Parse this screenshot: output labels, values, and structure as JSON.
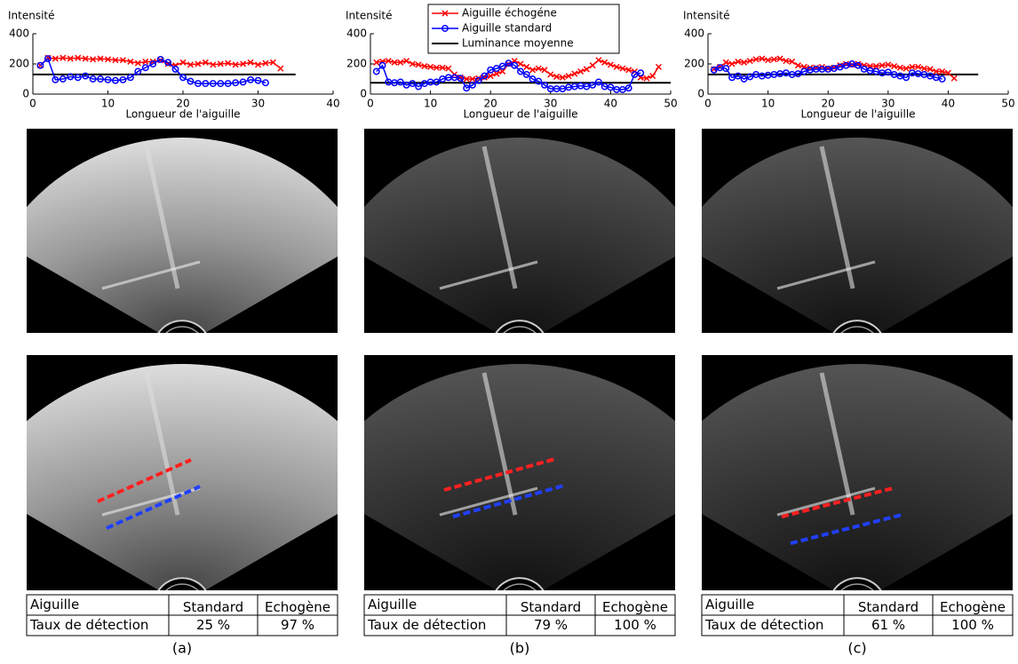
{
  "chart_data": [
    {
      "type": "line",
      "ylabel": "Intensité",
      "xlabel": "Longueur de l'aiguille",
      "xlim": [
        0,
        40
      ],
      "xticks": [
        0,
        10,
        20,
        30,
        40
      ],
      "ylim": [
        0,
        400
      ],
      "yticks": [
        0,
        200,
        400
      ],
      "series": [
        {
          "color": "#ff0000",
          "marker": "x",
          "x": [
            1,
            2,
            3,
            4,
            5,
            6,
            7,
            8,
            9,
            10,
            11,
            12,
            13,
            14,
            15,
            16,
            17,
            18,
            19,
            20,
            21,
            22,
            23,
            24,
            25,
            26,
            27,
            28,
            29,
            30,
            31,
            32,
            33
          ],
          "values": [
            190,
            240,
            235,
            240,
            235,
            240,
            235,
            230,
            235,
            230,
            225,
            225,
            215,
            205,
            215,
            215,
            225,
            200,
            190,
            210,
            195,
            200,
            210,
            195,
            200,
            205,
            195,
            200,
            210,
            195,
            205,
            210,
            170
          ]
        },
        {
          "color": "#0000ff",
          "marker": "o",
          "x": [
            1,
            2,
            3,
            4,
            5,
            6,
            7,
            8,
            9,
            10,
            11,
            12,
            13,
            14,
            15,
            16,
            17,
            18,
            19,
            20,
            21,
            22,
            23,
            24,
            25,
            26,
            27,
            28,
            29,
            30,
            31
          ],
          "values": [
            190,
            235,
            95,
            100,
            115,
            110,
            120,
            100,
            100,
            95,
            90,
            95,
            110,
            150,
            175,
            200,
            230,
            210,
            165,
            110,
            85,
            70,
            70,
            70,
            70,
            70,
            75,
            80,
            95,
            90,
            75
          ]
        }
      ],
      "reference_line": {
        "color": "#000000",
        "value": 130,
        "x": [
          0,
          35
        ]
      }
    },
    {
      "type": "line",
      "ylabel": "Intensité",
      "xlabel": "Longueur de l'aiguille",
      "xlim": [
        0,
        50
      ],
      "xticks": [
        0,
        10,
        20,
        30,
        40,
        50
      ],
      "ylim": [
        0,
        400
      ],
      "yticks": [
        0,
        200,
        400
      ],
      "series": [
        {
          "name": "Aiguille échogéne",
          "color": "#ff0000",
          "marker": "x",
          "x": [
            1,
            2,
            3,
            4,
            5,
            6,
            7,
            8,
            9,
            10,
            11,
            12,
            13,
            14,
            15,
            16,
            17,
            18,
            19,
            20,
            21,
            22,
            23,
            24,
            25,
            26,
            27,
            28,
            29,
            30,
            31,
            32,
            33,
            34,
            35,
            36,
            37,
            38,
            39,
            40,
            41,
            42,
            43,
            44,
            45,
            46,
            47,
            48
          ],
          "values": [
            210,
            215,
            220,
            210,
            210,
            220,
            200,
            195,
            185,
            180,
            175,
            175,
            170,
            130,
            110,
            100,
            100,
            105,
            110,
            120,
            135,
            150,
            200,
            220,
            200,
            180,
            160,
            170,
            160,
            130,
            115,
            110,
            120,
            135,
            150,
            165,
            190,
            225,
            210,
            195,
            180,
            170,
            160,
            150,
            110,
            105,
            120,
            180
          ]
        },
        {
          "name": "Aiguille standard",
          "color": "#0000ff",
          "marker": "o",
          "x": [
            1,
            2,
            3,
            4,
            5,
            6,
            7,
            8,
            9,
            10,
            11,
            12,
            13,
            14,
            15,
            16,
            17,
            18,
            19,
            20,
            21,
            22,
            23,
            24,
            25,
            26,
            27,
            28,
            29,
            30,
            31,
            32,
            33,
            34,
            35,
            36,
            37,
            38,
            39,
            40,
            41,
            42,
            43,
            44,
            45
          ],
          "values": [
            150,
            190,
            80,
            75,
            80,
            60,
            70,
            50,
            70,
            80,
            80,
            100,
            110,
            110,
            105,
            40,
            60,
            90,
            120,
            160,
            170,
            185,
            205,
            190,
            150,
            130,
            100,
            85,
            60,
            35,
            35,
            35,
            45,
            50,
            55,
            50,
            60,
            80,
            50,
            45,
            30,
            30,
            40,
            130,
            140
          ]
        }
      ],
      "reference_line": {
        "name": "Luminance moyenne",
        "color": "#000000",
        "value": 75,
        "x": [
          0,
          50
        ]
      }
    },
    {
      "type": "line",
      "ylabel": "Intensité",
      "xlabel": "Longueur de l'aiguille",
      "xlim": [
        0,
        50
      ],
      "xticks": [
        0,
        10,
        20,
        30,
        40,
        50
      ],
      "ylim": [
        0,
        400
      ],
      "yticks": [
        0,
        200,
        400
      ],
      "series": [
        {
          "color": "#ff0000",
          "marker": "x",
          "x": [
            1,
            2,
            3,
            4,
            5,
            6,
            7,
            8,
            9,
            10,
            11,
            12,
            13,
            14,
            15,
            16,
            17,
            18,
            19,
            20,
            21,
            22,
            23,
            24,
            25,
            26,
            27,
            28,
            29,
            30,
            31,
            32,
            33,
            34,
            35,
            36,
            37,
            38,
            39,
            40,
            41
          ],
          "values": [
            165,
            180,
            210,
            200,
            215,
            210,
            220,
            230,
            235,
            225,
            230,
            235,
            220,
            215,
            190,
            180,
            175,
            175,
            180,
            170,
            175,
            190,
            200,
            195,
            200,
            190,
            185,
            185,
            190,
            195,
            185,
            175,
            170,
            180,
            180,
            170,
            165,
            150,
            150,
            140,
            105
          ]
        },
        {
          "color": "#0000ff",
          "marker": "o",
          "x": [
            1,
            2,
            3,
            4,
            5,
            6,
            7,
            8,
            9,
            10,
            11,
            12,
            13,
            14,
            15,
            16,
            17,
            18,
            19,
            20,
            21,
            22,
            23,
            24,
            25,
            26,
            27,
            28,
            29,
            30,
            31,
            32,
            33,
            34,
            35,
            36,
            37,
            38,
            39
          ],
          "values": [
            160,
            175,
            170,
            110,
            120,
            100,
            115,
            130,
            120,
            125,
            130,
            135,
            140,
            130,
            135,
            150,
            160,
            165,
            165,
            165,
            170,
            180,
            190,
            200,
            190,
            165,
            155,
            150,
            140,
            145,
            130,
            120,
            110,
            140,
            135,
            130,
            120,
            110,
            100
          ]
        }
      ],
      "reference_line": {
        "color": "#000000",
        "value": 130,
        "x": [
          0,
          45
        ]
      }
    }
  ],
  "panels": [
    {
      "table": {
        "rows": [
          [
            "Aiguille",
            "Standard",
            "Echogène"
          ],
          [
            "Taux de détection",
            "25 %",
            "97 %"
          ]
        ]
      },
      "caption": "(a)"
    },
    {
      "table": {
        "rows": [
          [
            "Aiguille",
            "Standard",
            "Echogène"
          ],
          [
            "Taux de détection",
            "79 %",
            "100 %"
          ]
        ]
      },
      "caption": "(b)"
    },
    {
      "table": {
        "rows": [
          [
            "Aiguille",
            "Standard",
            "Echogène"
          ],
          [
            "Taux de détection",
            "61 %",
            "100 %"
          ]
        ]
      },
      "caption": "(c)"
    }
  ]
}
